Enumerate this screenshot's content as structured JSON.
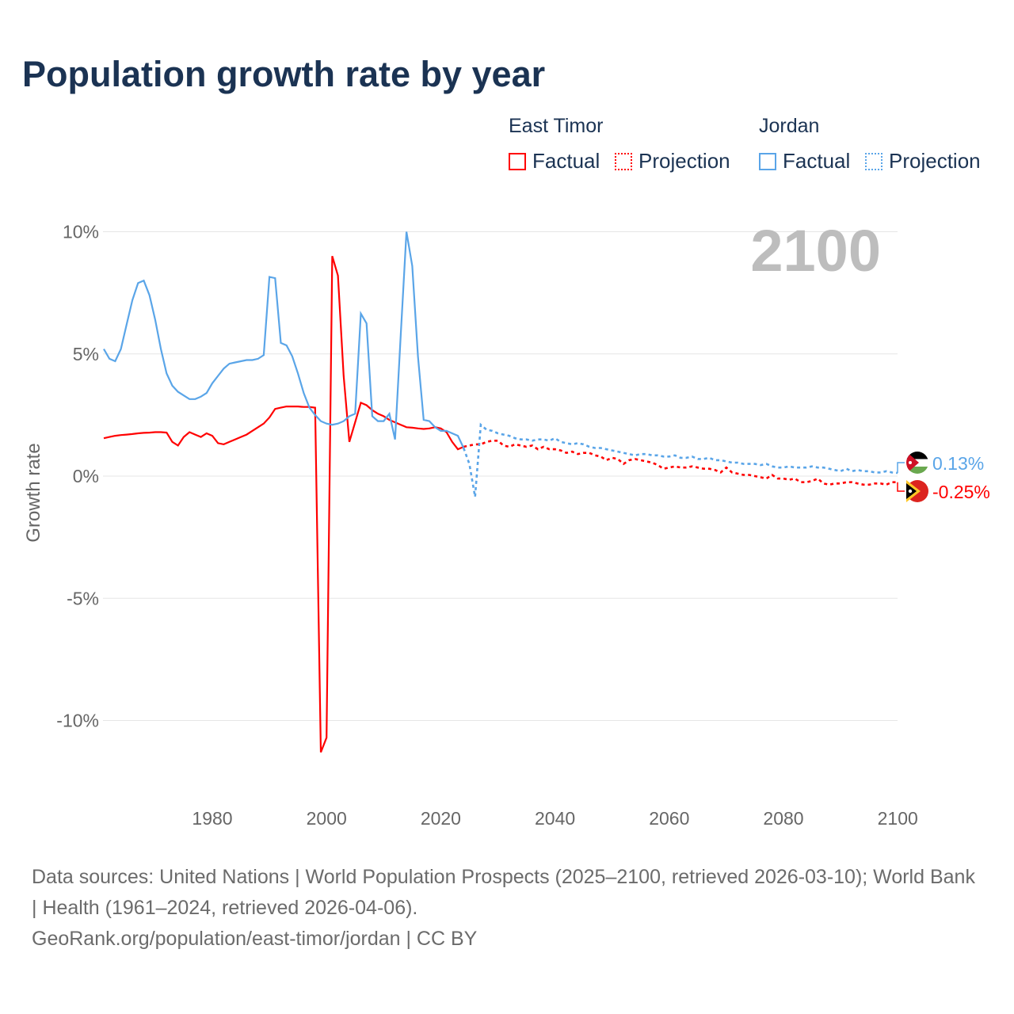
{
  "title": "Population growth rate by year",
  "legend": {
    "groups": [
      {
        "name": "East Timor",
        "factual": "Factual",
        "projection": "Projection",
        "color": "#ff0000"
      },
      {
        "name": "Jordan",
        "factual": "Factual",
        "projection": "Projection",
        "color": "#5aa5e8"
      }
    ]
  },
  "source": {
    "line1": "Data sources: United Nations | World Population Prospects (2025–2100, retrieved 2026-03-10); World Bank | Health (1961–2024, retrieved 2026-04-06).",
    "line2": "GeoRank.org/population/east-timor/jordan | CC BY"
  },
  "chart_data": {
    "type": "line",
    "title": "Population growth rate by year",
    "xlabel": "",
    "ylabel": "Growth rate",
    "xlim": [
      1961,
      2100
    ],
    "ylim": [
      -12,
      10
    ],
    "year_label": "2100",
    "x_ticks": [
      1980,
      2000,
      2020,
      2040,
      2060,
      2080,
      2100
    ],
    "y_ticks": [
      {
        "v": 10,
        "label": "10%"
      },
      {
        "v": 5,
        "label": "5%"
      },
      {
        "v": 0,
        "label": "0%"
      },
      {
        "v": -5,
        "label": "-5%"
      },
      {
        "v": -10,
        "label": "-10%"
      }
    ],
    "grid": true,
    "series": [
      {
        "name": "East Timor",
        "color": "#ff0000",
        "end_label": "-0.25%",
        "factual_start": 1961,
        "factual": [
          1.55,
          1.6,
          1.65,
          1.68,
          1.7,
          1.72,
          1.75,
          1.77,
          1.78,
          1.8,
          1.8,
          1.78,
          1.4,
          1.25,
          1.6,
          1.8,
          1.7,
          1.6,
          1.75,
          1.65,
          1.35,
          1.3,
          1.4,
          1.5,
          1.6,
          1.7,
          1.85,
          2.0,
          2.15,
          2.4,
          2.75,
          2.8,
          2.85,
          2.85,
          2.85,
          2.83,
          2.83,
          2.8,
          -11.3,
          -10.7,
          9.0,
          8.2,
          4.1,
          1.4,
          2.2,
          3.0,
          2.9,
          2.7,
          2.55,
          2.45,
          2.3,
          2.2,
          2.1,
          2.0,
          1.98,
          1.95,
          1.93,
          1.95,
          2.0,
          1.95,
          1.8,
          1.4,
          1.1,
          1.2
        ],
        "projection_start": 2024,
        "projection": [
          1.2,
          1.25,
          1.3,
          1.3,
          1.4,
          1.45,
          1.45,
          1.25,
          1.2,
          1.3,
          1.25,
          1.2,
          1.25,
          1.1,
          1.2,
          1.1,
          1.1,
          1.05,
          0.95,
          1.0,
          0.9,
          0.95,
          0.95,
          0.85,
          0.8,
          0.65,
          0.75,
          0.7,
          0.5,
          0.65,
          0.7,
          0.65,
          0.6,
          0.55,
          0.45,
          0.3,
          0.35,
          0.4,
          0.35,
          0.35,
          0.4,
          0.35,
          0.3,
          0.3,
          0.25,
          0.15,
          0.35,
          0.15,
          0.1,
          0.05,
          0.05,
          0.0,
          -0.05,
          -0.1,
          0.05,
          -0.1,
          -0.1,
          -0.15,
          -0.1,
          -0.25,
          -0.25,
          -0.2,
          -0.1,
          -0.3,
          -0.35,
          -0.3,
          -0.3,
          -0.25,
          -0.25,
          -0.3,
          -0.35,
          -0.35,
          -0.3,
          -0.3,
          -0.35,
          -0.25,
          -0.25
        ]
      },
      {
        "name": "Jordan",
        "color": "#5aa5e8",
        "end_label": "0.13%",
        "factual_start": 1961,
        "factual": [
          5.2,
          4.8,
          4.7,
          5.2,
          6.2,
          7.2,
          7.9,
          8.0,
          7.4,
          6.4,
          5.2,
          4.2,
          3.7,
          3.45,
          3.3,
          3.15,
          3.15,
          3.25,
          3.4,
          3.8,
          4.1,
          4.4,
          4.6,
          4.65,
          4.7,
          4.75,
          4.75,
          4.8,
          4.95,
          8.15,
          8.1,
          5.45,
          5.35,
          4.9,
          4.2,
          3.4,
          2.8,
          2.5,
          2.25,
          2.15,
          2.1,
          2.15,
          2.25,
          2.45,
          2.55,
          6.65,
          6.25,
          2.45,
          2.25,
          2.25,
          2.55,
          1.5,
          5.8,
          10.0,
          8.6,
          4.9,
          2.3,
          2.25,
          2.0,
          1.85,
          1.85,
          1.75,
          1.65,
          1.15
        ],
        "projection_start": 2024,
        "projection": [
          1.15,
          0.5,
          -0.85,
          2.1,
          1.9,
          1.85,
          1.75,
          1.7,
          1.65,
          1.55,
          1.5,
          1.5,
          1.45,
          1.5,
          1.5,
          1.45,
          1.55,
          1.4,
          1.35,
          1.3,
          1.35,
          1.3,
          1.2,
          1.15,
          1.15,
          1.1,
          1.05,
          1.0,
          0.95,
          0.9,
          0.85,
          0.9,
          0.9,
          0.85,
          0.85,
          0.8,
          0.8,
          0.85,
          0.75,
          0.75,
          0.8,
          0.7,
          0.7,
          0.75,
          0.65,
          0.65,
          0.6,
          0.55,
          0.55,
          0.5,
          0.5,
          0.5,
          0.45,
          0.5,
          0.4,
          0.35,
          0.35,
          0.4,
          0.35,
          0.35,
          0.35,
          0.4,
          0.35,
          0.35,
          0.3,
          0.25,
          0.2,
          0.3,
          0.2,
          0.25,
          0.2,
          0.2,
          0.15,
          0.15,
          0.2,
          0.15,
          0.13
        ]
      }
    ]
  }
}
